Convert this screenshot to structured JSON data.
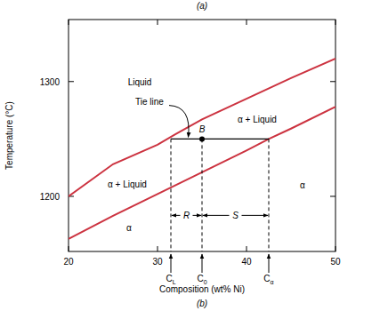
{
  "chart_data": {
    "type": "line",
    "caption_top": "(a)",
    "caption": "(b)",
    "x_label": "Composition (wt% Ni)",
    "y_label": "Temperature (°C)",
    "xlim": [
      20,
      50
    ],
    "ylim": [
      1152,
      1354
    ],
    "xticks": [
      20,
      30,
      40,
      50
    ],
    "yticks": [
      1200,
      1300
    ],
    "series": [
      {
        "color": "#cc3340",
        "x": [
          20,
          25,
          30,
          32,
          35,
          40,
          45,
          50
        ],
        "values": [
          1200,
          1228,
          1245,
          1254,
          1267,
          1285,
          1303,
          1320
        ]
      },
      {
        "color": "#cc3340",
        "x": [
          20,
          25,
          30,
          35,
          40,
          42.5,
          45,
          50
        ],
        "values": [
          1163,
          1183,
          1202,
          1221,
          1240,
          1250,
          1259,
          1278
        ]
      }
    ],
    "annotations": [
      {
        "text": "Liquid",
        "x": 28,
        "y": 1300
      },
      {
        "text": "α + Liquid",
        "x": 41.2,
        "y": 1267
      },
      {
        "text": "α + Liquid",
        "x": 26.6,
        "y": 1211
      },
      {
        "text": "α",
        "x": 46.3,
        "y": 1210
      },
      {
        "text": "α",
        "x": 26.8,
        "y": 1173
      }
    ],
    "point": {
      "label": "B",
      "x": 35,
      "y": 1250
    },
    "tie_line": {
      "label": "Tie line",
      "label_x": 29.1,
      "label_y": 1280,
      "y": 1250,
      "compositions": [
        {
          "label": "C",
          "sub": "L",
          "value": 31.5
        },
        {
          "label": "C",
          "sub": "0",
          "value": 35
        },
        {
          "label": "C",
          "sub": "α",
          "value": 42.5
        }
      ],
      "segments": [
        {
          "label": "R"
        },
        {
          "label": "S"
        }
      ]
    }
  }
}
